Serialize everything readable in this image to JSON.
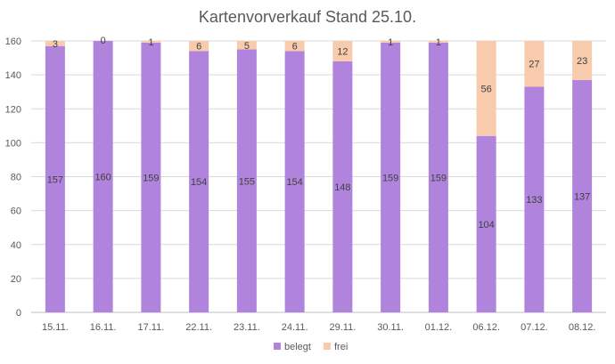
{
  "chart_data": {
    "type": "bar",
    "stacked": true,
    "title": "Kartenvorverkauf Stand 25.10.",
    "xlabel": "",
    "ylabel": "",
    "categories": [
      "15.11.",
      "16.11.",
      "17.11.",
      "22.11.",
      "23.11.",
      "24.11.",
      "29.11.",
      "30.11.",
      "01.12.",
      "06.12.",
      "07.12.",
      "08.12."
    ],
    "series": [
      {
        "name": "belegt",
        "color": "#b084dc",
        "values": [
          157,
          160,
          159,
          154,
          155,
          154,
          148,
          159,
          159,
          104,
          133,
          137
        ]
      },
      {
        "name": "frei",
        "color": "#f8cbad",
        "values": [
          3,
          0,
          1,
          6,
          5,
          6,
          12,
          1,
          1,
          56,
          27,
          23
        ]
      }
    ],
    "ylim": [
      0,
      160
    ],
    "yticks": [
      "0",
      "20",
      "40",
      "60",
      "80",
      "100",
      "120",
      "140",
      "160"
    ],
    "grid": true,
    "legend_position": "bottom"
  }
}
